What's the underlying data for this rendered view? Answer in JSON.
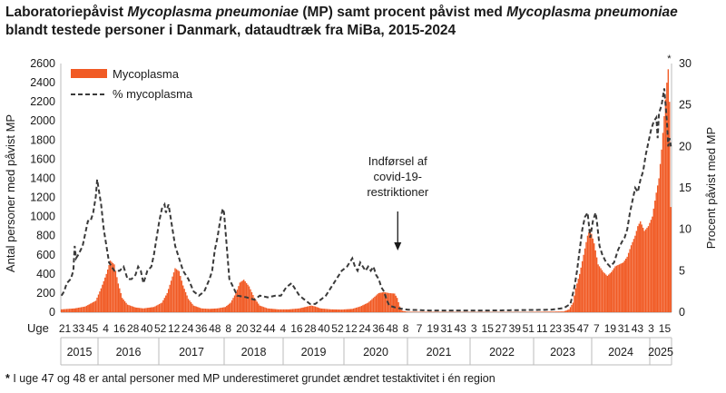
{
  "title": {
    "part1": "Laboratoriepåvist ",
    "organism_italic_1": "Mycoplasma pneumoniae",
    "part2": " (MP) samt procent påvist med ",
    "organism_italic_2": "Mycoplasma pneumoniae",
    "line2": "blandt testede  personer i Danmark, dataudtræk fra MiBa, 2015-2024"
  },
  "footnote": {
    "marker": "*",
    "text": " I uge 47 og 48 er antal personer med MP underestimeret grundet ændret testaktivitet i én region"
  },
  "chart_data": {
    "type": "bar+line",
    "ylabel_left": "Antal personer med påvist MP",
    "ylabel_right": "Procent påvist med MP",
    "ylim_left": [
      0,
      2600
    ],
    "ylim_right": [
      0,
      30
    ],
    "yticks_left": [
      "0",
      "200",
      "400",
      "600",
      "800",
      "1000",
      "1200",
      "1400",
      "1600",
      "1800",
      "2000",
      "2200",
      "2400",
      "2600"
    ],
    "yticks_right": [
      "0",
      "5",
      "10",
      "15",
      "20",
      "25",
      "30"
    ],
    "x_axis_prefix": "Uge",
    "week_labels": [
      "21",
      "33",
      "45",
      "4",
      "16",
      "28",
      "40",
      "52",
      "12",
      "24",
      "36",
      "48",
      "8",
      "20",
      "32",
      "44",
      "4",
      "16",
      "28",
      "40",
      "52",
      "12",
      "24",
      "36",
      "48",
      "8",
      "7",
      "19",
      "31",
      "43",
      "3",
      "15",
      "27",
      "39",
      "51",
      "11",
      "23",
      "35",
      "47",
      "7",
      "19",
      "31",
      "43",
      "3",
      "15"
    ],
    "years": [
      "2015",
      "2016",
      "2017",
      "2018",
      "2019",
      "2020",
      "2021",
      "2022",
      "2023",
      "2024",
      "2025"
    ],
    "legend": [
      {
        "name": "Mycoplasma",
        "color": "#f15a24",
        "style": "bar"
      },
      {
        "name": "% mycoplasma",
        "color": "#3a3a3a",
        "style": "dashed-line"
      }
    ],
    "legend_position": "top-left",
    "annotation": "Indførsel af covid-19-restriktioner",
    "annotation_lines": [
      "Indførsel af",
      "covid-19-",
      "restriktioner"
    ],
    "annotation_week": "2020 uge 11",
    "asterisk_marker": "*",
    "start_week": "2015 uge 19",
    "end_week": "2025 uge 2",
    "bar_points": [
      [
        0,
        30
      ],
      [
        10,
        40
      ],
      [
        18,
        60
      ],
      [
        26,
        120
      ],
      [
        30,
        250
      ],
      [
        34,
        400
      ],
      [
        37,
        540
      ],
      [
        40,
        500
      ],
      [
        43,
        300
      ],
      [
        46,
        150
      ],
      [
        50,
        80
      ],
      [
        56,
        50
      ],
      [
        62,
        40
      ],
      [
        70,
        55
      ],
      [
        76,
        100
      ],
      [
        80,
        200
      ],
      [
        83,
        330
      ],
      [
        86,
        460
      ],
      [
        89,
        430
      ],
      [
        92,
        280
      ],
      [
        96,
        140
      ],
      [
        100,
        70
      ],
      [
        106,
        40
      ],
      [
        112,
        35
      ],
      [
        118,
        40
      ],
      [
        124,
        55
      ],
      [
        128,
        100
      ],
      [
        132,
        200
      ],
      [
        135,
        310
      ],
      [
        138,
        340
      ],
      [
        142,
        270
      ],
      [
        146,
        150
      ],
      [
        150,
        70
      ],
      [
        156,
        40
      ],
      [
        164,
        30
      ],
      [
        172,
        30
      ],
      [
        180,
        40
      ],
      [
        186,
        60
      ],
      [
        189,
        70
      ],
      [
        192,
        60
      ],
      [
        196,
        40
      ],
      [
        204,
        30
      ],
      [
        212,
        28
      ],
      [
        220,
        35
      ],
      [
        226,
        60
      ],
      [
        232,
        100
      ],
      [
        236,
        150
      ],
      [
        240,
        200
      ],
      [
        244,
        210
      ],
      [
        248,
        200
      ],
      [
        252,
        195
      ],
      [
        254,
        150
      ],
      [
        256,
        60
      ],
      [
        258,
        15
      ],
      [
        262,
        5
      ],
      [
        300,
        3
      ],
      [
        350,
        3
      ],
      [
        380,
        8
      ],
      [
        384,
        30
      ],
      [
        387,
        100
      ],
      [
        389,
        250
      ],
      [
        392,
        400
      ],
      [
        395,
        600
      ],
      [
        398,
        800
      ],
      [
        400,
        870
      ],
      [
        403,
        720
      ],
      [
        406,
        500
      ],
      [
        410,
        420
      ],
      [
        413,
        380
      ],
      [
        416,
        420
      ],
      [
        419,
        480
      ],
      [
        422,
        500
      ],
      [
        425,
        520
      ],
      [
        428,
        580
      ],
      [
        431,
        700
      ],
      [
        434,
        800
      ],
      [
        436,
        900
      ],
      [
        438,
        950
      ],
      [
        441,
        850
      ],
      [
        444,
        900
      ],
      [
        447,
        1000
      ],
      [
        450,
        1250
      ],
      [
        452,
        1400
      ],
      [
        454,
        1700
      ],
      [
        456,
        2050
      ],
      [
        458,
        2400
      ],
      [
        459,
        2540
      ],
      [
        460,
        2200
      ],
      [
        461,
        1100
      ],
      [
        462,
        500
      ]
    ],
    "pct_points": [
      [
        0,
        2
      ],
      [
        2,
        2.5
      ],
      [
        4,
        3.5
      ],
      [
        7,
        4
      ],
      [
        9,
        5
      ],
      [
        10,
        8
      ],
      [
        11,
        6.5
      ],
      [
        13,
        7
      ],
      [
        16,
        8
      ],
      [
        18,
        9.5
      ],
      [
        20,
        11
      ],
      [
        22,
        11
      ],
      [
        24,
        12
      ],
      [
        26,
        14
      ],
      [
        27,
        16
      ],
      [
        28,
        15
      ],
      [
        30,
        13
      ],
      [
        32,
        10
      ],
      [
        34,
        8
      ],
      [
        36,
        6
      ],
      [
        40,
        5
      ],
      [
        44,
        5
      ],
      [
        47,
        5.5
      ],
      [
        50,
        4
      ],
      [
        53,
        4
      ],
      [
        56,
        4.5
      ],
      [
        58,
        5.5
      ],
      [
        60,
        5
      ],
      [
        62,
        3.5
      ],
      [
        65,
        5
      ],
      [
        68,
        5.5
      ],
      [
        70,
        7
      ],
      [
        72,
        9
      ],
      [
        74,
        11
      ],
      [
        76,
        12.5
      ],
      [
        78,
        13
      ],
      [
        79,
        12
      ],
      [
        81,
        13
      ],
      [
        84,
        10
      ],
      [
        86,
        8
      ],
      [
        88,
        7
      ],
      [
        92,
        5
      ],
      [
        96,
        4
      ],
      [
        100,
        2.5
      ],
      [
        104,
        2
      ],
      [
        108,
        2.5
      ],
      [
        112,
        4
      ],
      [
        114,
        5
      ],
      [
        116,
        7.5
      ],
      [
        118,
        9
      ],
      [
        120,
        11
      ],
      [
        122,
        12.5
      ],
      [
        123,
        12
      ],
      [
        125,
        8
      ],
      [
        127,
        4
      ],
      [
        130,
        3
      ],
      [
        133,
        2
      ],
      [
        140,
        1.8
      ],
      [
        146,
        1.5
      ],
      [
        150,
        2
      ],
      [
        156,
        1.8
      ],
      [
        162,
        2
      ],
      [
        166,
        2
      ],
      [
        170,
        3
      ],
      [
        174,
        3.5
      ],
      [
        176,
        3
      ],
      [
        180,
        2
      ],
      [
        184,
        1.5
      ],
      [
        188,
        1
      ],
      [
        192,
        1
      ],
      [
        196,
        1.5
      ],
      [
        200,
        2
      ],
      [
        204,
        3
      ],
      [
        208,
        4
      ],
      [
        212,
        5
      ],
      [
        216,
        5.5
      ],
      [
        218,
        6
      ],
      [
        220,
        6.5
      ],
      [
        222,
        5.5
      ],
      [
        224,
        5
      ],
      [
        226,
        6
      ],
      [
        228,
        5.5
      ],
      [
        230,
        5
      ],
      [
        232,
        5.5
      ],
      [
        234,
        5
      ],
      [
        236,
        5.5
      ],
      [
        238,
        4.5
      ],
      [
        240,
        4
      ],
      [
        242,
        3
      ],
      [
        244,
        2.5
      ],
      [
        246,
        1.5
      ],
      [
        248,
        0.8
      ],
      [
        254,
        0.5
      ],
      [
        262,
        0.3
      ],
      [
        280,
        0.2
      ],
      [
        320,
        0.2
      ],
      [
        370,
        0.3
      ],
      [
        380,
        0.5
      ],
      [
        385,
        1
      ],
      [
        388,
        3
      ],
      [
        390,
        5
      ],
      [
        392,
        7.5
      ],
      [
        394,
        10
      ],
      [
        396,
        11.5
      ],
      [
        398,
        12
      ],
      [
        400,
        9
      ],
      [
        402,
        11
      ],
      [
        404,
        12
      ],
      [
        405,
        11
      ],
      [
        407,
        8
      ],
      [
        409,
        7
      ],
      [
        412,
        6
      ],
      [
        415,
        5.5
      ],
      [
        418,
        6
      ],
      [
        421,
        7.5
      ],
      [
        424,
        8.5
      ],
      [
        426,
        9
      ],
      [
        428,
        10
      ],
      [
        430,
        12
      ],
      [
        432,
        13.5
      ],
      [
        434,
        15
      ],
      [
        436,
        14.5
      ],
      [
        438,
        16
      ],
      [
        440,
        17
      ],
      [
        442,
        19
      ],
      [
        444,
        20.5
      ],
      [
        446,
        22
      ],
      [
        448,
        23
      ],
      [
        450,
        23.5
      ],
      [
        451,
        21
      ],
      [
        452,
        24
      ],
      [
        454,
        25
      ],
      [
        455,
        26
      ],
      [
        456,
        27
      ],
      [
        457,
        25
      ],
      [
        458,
        23
      ],
      [
        459,
        20
      ],
      [
        460,
        21
      ],
      [
        461,
        20
      ]
    ]
  }
}
